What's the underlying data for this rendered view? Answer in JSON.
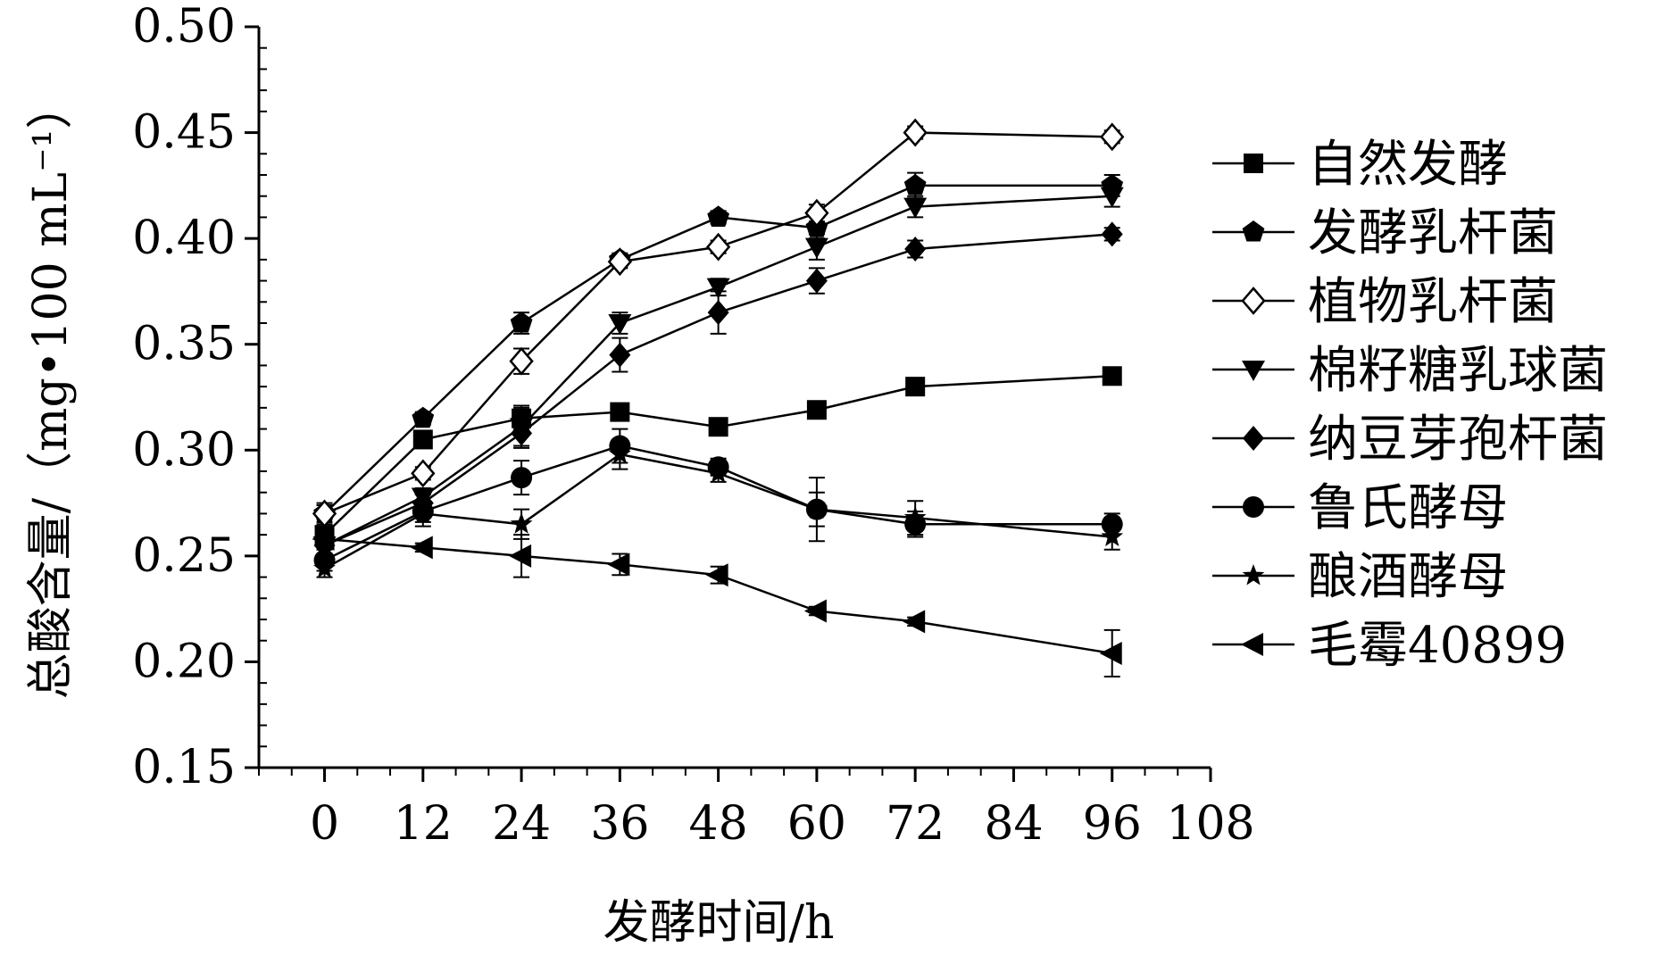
{
  "chart_data": {
    "type": "line",
    "title": "",
    "xlabel": "发酵时间/h",
    "ylabel": "总酸含量/（mg•100 mL⁻¹）",
    "xlim": [
      -8,
      108
    ],
    "ylim": [
      0.15,
      0.5
    ],
    "x_ticks": [
      0,
      12,
      24,
      36,
      48,
      60,
      72,
      84,
      96,
      108
    ],
    "y_ticks": [
      0.15,
      0.2,
      0.25,
      0.3,
      0.35,
      0.4,
      0.45,
      0.5
    ],
    "x_tick_labels": [
      "0",
      "12",
      "24",
      "36",
      "48",
      "60",
      "72",
      "84",
      "96",
      "108"
    ],
    "y_tick_labels": [
      "0.15",
      "0.20",
      "0.25",
      "0.30",
      "0.35",
      "0.40",
      "0.45",
      "0.50"
    ],
    "grid": false,
    "legend_position": "right",
    "x": [
      0,
      12,
      24,
      36,
      48,
      60,
      72,
      96
    ],
    "series": [
      {
        "name": "自然发酵",
        "marker": "square",
        "values": [
          0.26,
          0.305,
          0.315,
          0.318,
          0.311,
          0.319,
          0.33,
          0.335
        ],
        "errors": [
          0.004,
          0.003,
          0.005,
          0.003,
          0.003,
          0.003,
          0.004,
          0.004
        ]
      },
      {
        "name": "发酵乳杆菌",
        "marker": "pentagon",
        "values": [
          0.27,
          0.315,
          0.36,
          0.39,
          0.41,
          0.405,
          0.425,
          0.425
        ],
        "errors": [
          0.004,
          0.003,
          0.005,
          0.003,
          0.003,
          0.005,
          0.006,
          0.005
        ]
      },
      {
        "name": "植物乳杆菌",
        "marker": "diamond-open",
        "values": [
          0.27,
          0.289,
          0.342,
          0.389,
          0.396,
          0.412,
          0.45,
          0.448
        ],
        "errors": [
          0.005,
          0.003,
          0.006,
          0.003,
          0.003,
          0.004,
          0.003,
          0.003
        ]
      },
      {
        "name": "棉籽糖乳球菌",
        "marker": "triangle-down",
        "values": [
          0.255,
          0.278,
          0.311,
          0.36,
          0.377,
          0.396,
          0.415,
          0.42
        ],
        "errors": [
          0.005,
          0.004,
          0.01,
          0.005,
          0.004,
          0.006,
          0.005,
          0.005
        ]
      },
      {
        "name": "纳豆芽孢杆菌",
        "marker": "diamond",
        "values": [
          0.255,
          0.275,
          0.308,
          0.345,
          0.365,
          0.38,
          0.395,
          0.402
        ],
        "errors": [
          0.005,
          0.004,
          0.006,
          0.008,
          0.01,
          0.006,
          0.004,
          0.003
        ]
      },
      {
        "name": "鲁氏酵母",
        "marker": "circle",
        "values": [
          0.248,
          0.271,
          0.287,
          0.302,
          0.292,
          0.272,
          0.265,
          0.265
        ],
        "errors": [
          0.005,
          0.005,
          0.008,
          0.008,
          0.004,
          0.008,
          0.006,
          0.005
        ]
      },
      {
        "name": "酿酒酵母",
        "marker": "star",
        "values": [
          0.244,
          0.27,
          0.265,
          0.298,
          0.289,
          0.272,
          0.268,
          0.259
        ],
        "errors": [
          0.004,
          0.006,
          0.007,
          0.007,
          0.004,
          0.015,
          0.008,
          0.006
        ]
      },
      {
        "name": "毛霉40899",
        "marker": "triangle-left",
        "values": [
          0.258,
          0.254,
          0.25,
          0.246,
          0.241,
          0.224,
          0.219,
          0.204
        ],
        "errors": [
          0.004,
          0.002,
          0.01,
          0.005,
          0.004,
          0.002,
          0.002,
          0.011
        ]
      }
    ]
  }
}
